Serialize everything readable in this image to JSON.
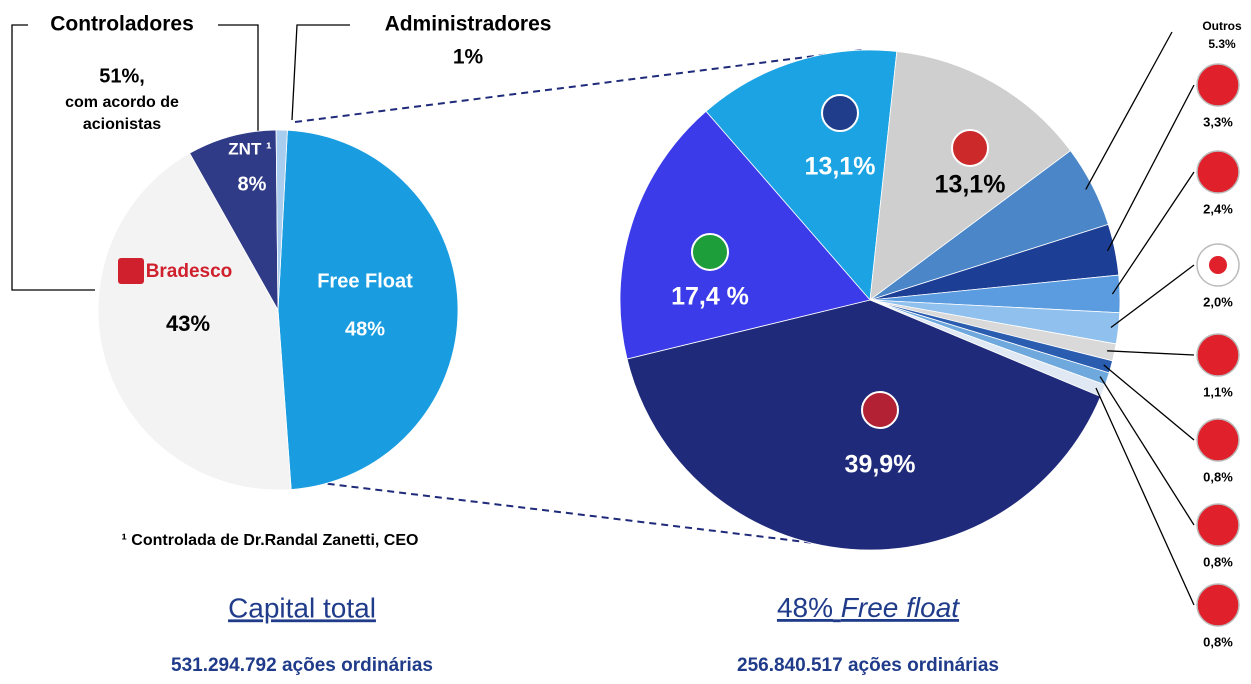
{
  "chart_data": [
    {
      "type": "pie",
      "categories": [
        "Free Float",
        "Bradesco",
        "ZNT ¹",
        "Administradores"
      ],
      "values": [
        48,
        43,
        8,
        1
      ],
      "value_labels": [
        "48%",
        "43%",
        "8%",
        "1%"
      ],
      "colors": [
        "#1a9de0",
        "#f3f3f3",
        "#2f3b86",
        "#a9cdee"
      ],
      "group_label": "Controladores",
      "group_value": "51%,",
      "group_note": [
        "com acordo de",
        "acionistas"
      ],
      "footnote": "¹ Controlada de Dr.Randal Zanetti, CEO",
      "title": "Capital total",
      "subtitle": "531.294.792 ações ordinárias"
    },
    {
      "type": "pie",
      "categories": [
        null,
        null,
        "Outros",
        null,
        null,
        null,
        null,
        null,
        null,
        null,
        null,
        null
      ],
      "values": [
        13.1,
        13.1,
        5.3,
        3.3,
        2.4,
        2.0,
        1.1,
        0.8,
        0.8,
        0.8,
        39.9,
        17.4
      ],
      "value_labels": [
        "13,1%",
        "13,1%",
        "5.3%",
        "3,3%",
        "2,4%",
        "2,0%",
        "1,1%",
        "0,8%",
        "0,8%",
        "0,8%",
        "39,9%",
        "17,4 %"
      ],
      "colors": [
        "#1ca3e3",
        "#cfcfcf",
        "#4a86c8",
        "#1c3f95",
        "#5b9be0",
        "#8fc0ee",
        "#d9d9d9",
        "#2a5db0",
        "#6fa8dc",
        "#dfe8f3",
        "#1f2a7a",
        "#3b3bea"
      ],
      "title": [
        "48%",
        "Free float"
      ],
      "subtitle": "256.840.517 ações ordinárias"
    }
  ]
}
